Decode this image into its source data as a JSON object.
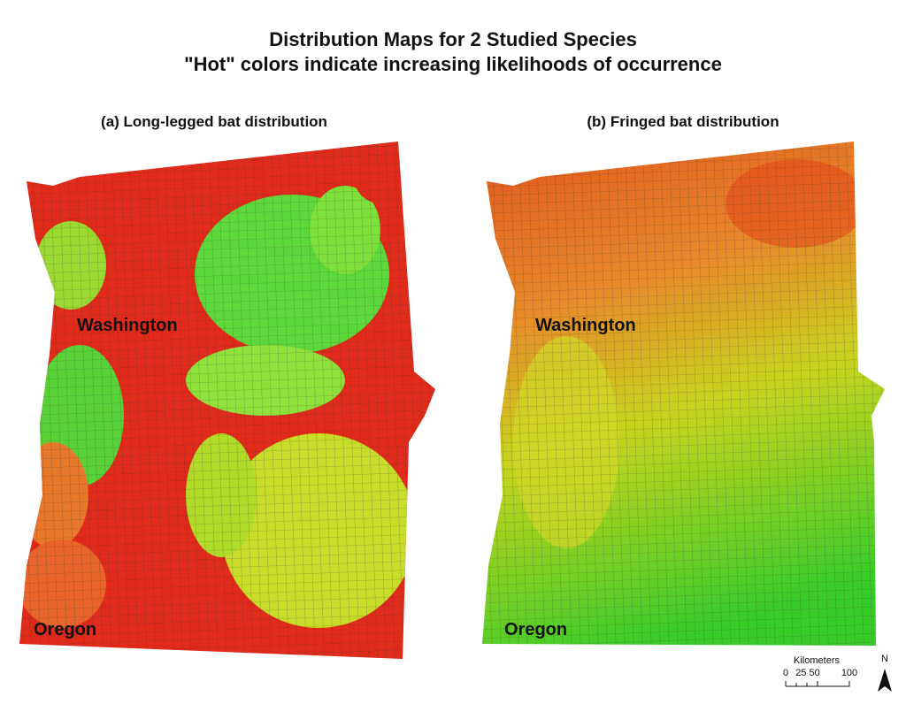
{
  "title": {
    "line1": "Distribution Maps for 2 Studied Species",
    "line2": "\"Hot\" colors indicate increasing likelihoods of occurrence"
  },
  "panels": [
    {
      "title": "(a) Long-legged bat distribution",
      "labels": [
        "Washington",
        "Oregon"
      ]
    },
    {
      "title": "(b) Fringed bat distribution",
      "labels": [
        "Washington",
        "Oregon"
      ]
    }
  ],
  "scale_bar": {
    "unit": "Kilometers",
    "labels": [
      "0",
      "25 50",
      "100"
    ],
    "north": "N"
  }
}
